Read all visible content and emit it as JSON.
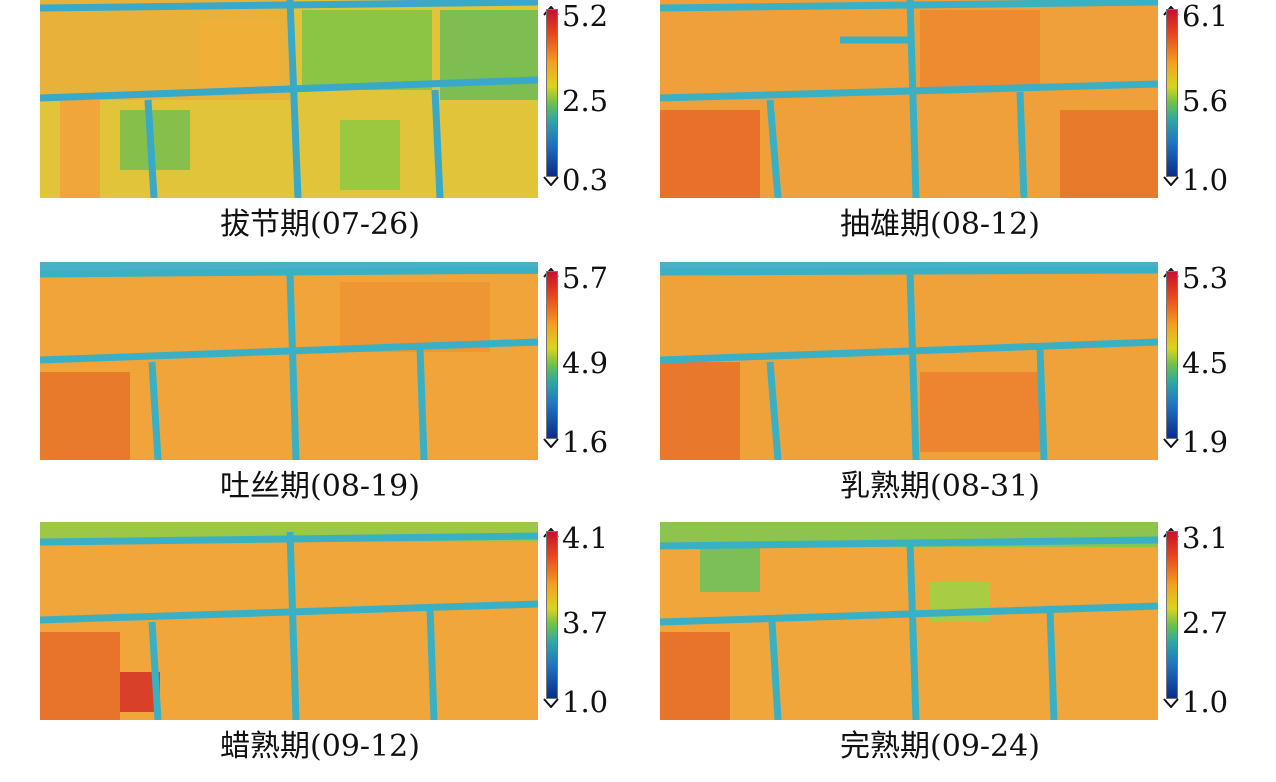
{
  "panels": [
    {
      "caption": "拔节期(07-26)",
      "ticks": [
        "5.2",
        "2.5",
        "0.3"
      ]
    },
    {
      "caption": "抽雄期(08-12)",
      "ticks": [
        "6.1",
        "5.6",
        "1.0"
      ]
    },
    {
      "caption": "吐丝期(08-19)",
      "ticks": [
        "5.7",
        "4.9",
        "1.6"
      ]
    },
    {
      "caption": "乳熟期(08-31)",
      "ticks": [
        "5.3",
        "4.5",
        "1.9"
      ]
    },
    {
      "caption": "蜡熟期(09-12)",
      "ticks": [
        "4.1",
        "3.7",
        "1.0"
      ]
    },
    {
      "caption": "完熟期(09-24)",
      "ticks": [
        "3.1",
        "2.7",
        "1.0"
      ]
    }
  ],
  "colors": {
    "high": "#c8102e",
    "mid_high": "#f5a020",
    "mid": "#6cc24a",
    "mid_low": "#2fa8a4",
    "low": "#0a2c8a"
  }
}
